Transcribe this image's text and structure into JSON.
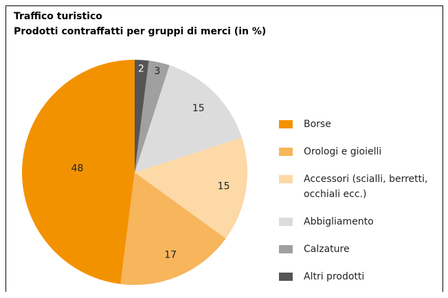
{
  "chart_data": {
    "type": "pie",
    "title": "Traffico turistico",
    "subtitle": "Prodotti contraffatti per gruppi di merci (in %)",
    "categories": [
      "Borse",
      "Orologi e gioielli",
      "Accessori (scialli, berretti, occhiali ecc.)",
      "Abbigliamento",
      "Calzature",
      "Altri prodotti"
    ],
    "values": [
      48,
      17,
      15,
      15,
      3,
      2
    ],
    "colors": [
      "#f39200",
      "#f7b55c",
      "#fcd9a6",
      "#dcdcdc",
      "#a0a0a0",
      "#555555"
    ],
    "legend": "right"
  }
}
